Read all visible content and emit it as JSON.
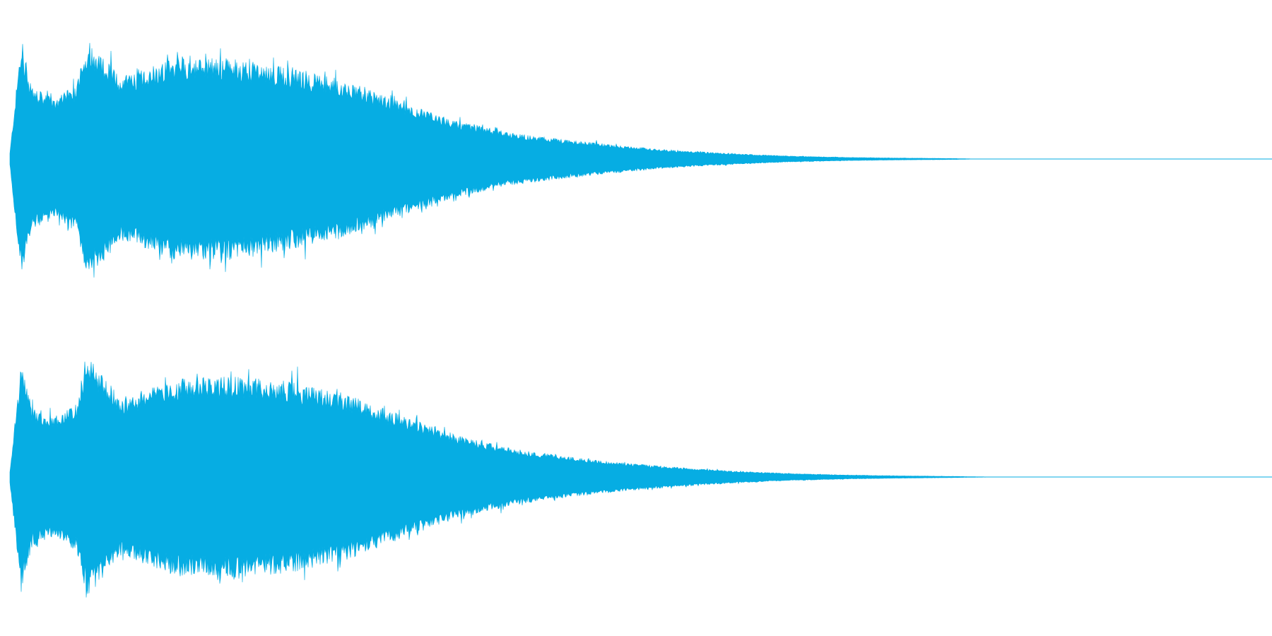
{
  "colors": {
    "waveform": "#06ade3",
    "background": "#ffffff"
  },
  "chart_data": {
    "type": "area",
    "title": "",
    "xlabel": "",
    "ylabel": "",
    "grid": false,
    "legend": "none",
    "ylim": [
      -1,
      1
    ],
    "x": [
      0.0,
      0.01,
      0.02,
      0.04,
      0.06,
      0.07,
      0.1,
      0.12,
      0.15,
      0.2,
      0.25,
      0.3,
      0.35,
      0.4,
      0.45,
      0.5,
      0.55,
      0.6,
      0.65,
      0.7,
      0.75,
      0.8,
      0.85,
      0.87,
      0.9,
      1.0
    ],
    "series": [
      {
        "channel": "left",
        "envelope": [
          0.05,
          0.98,
          0.6,
          0.5,
          0.62,
          1.0,
          0.68,
          0.75,
          0.85,
          0.84,
          0.76,
          0.66,
          0.48,
          0.32,
          0.22,
          0.16,
          0.11,
          0.07,
          0.045,
          0.025,
          0.014,
          0.008,
          0.004,
          0.0,
          0.0,
          0.0
        ],
        "peaks": [
          0.98,
          1.0,
          0.85,
          0.78,
          0.65,
          0.52,
          0.36
        ]
      },
      {
        "channel": "right",
        "envelope": [
          0.05,
          0.95,
          0.58,
          0.5,
          0.62,
          1.0,
          0.66,
          0.72,
          0.82,
          0.84,
          0.8,
          0.7,
          0.52,
          0.35,
          0.24,
          0.17,
          0.12,
          0.08,
          0.05,
          0.03,
          0.017,
          0.01,
          0.005,
          0.002,
          0.0,
          0.0
        ],
        "peaks": [
          0.95,
          1.0,
          0.84,
          0.8,
          0.66,
          0.56,
          0.38
        ]
      }
    ]
  }
}
